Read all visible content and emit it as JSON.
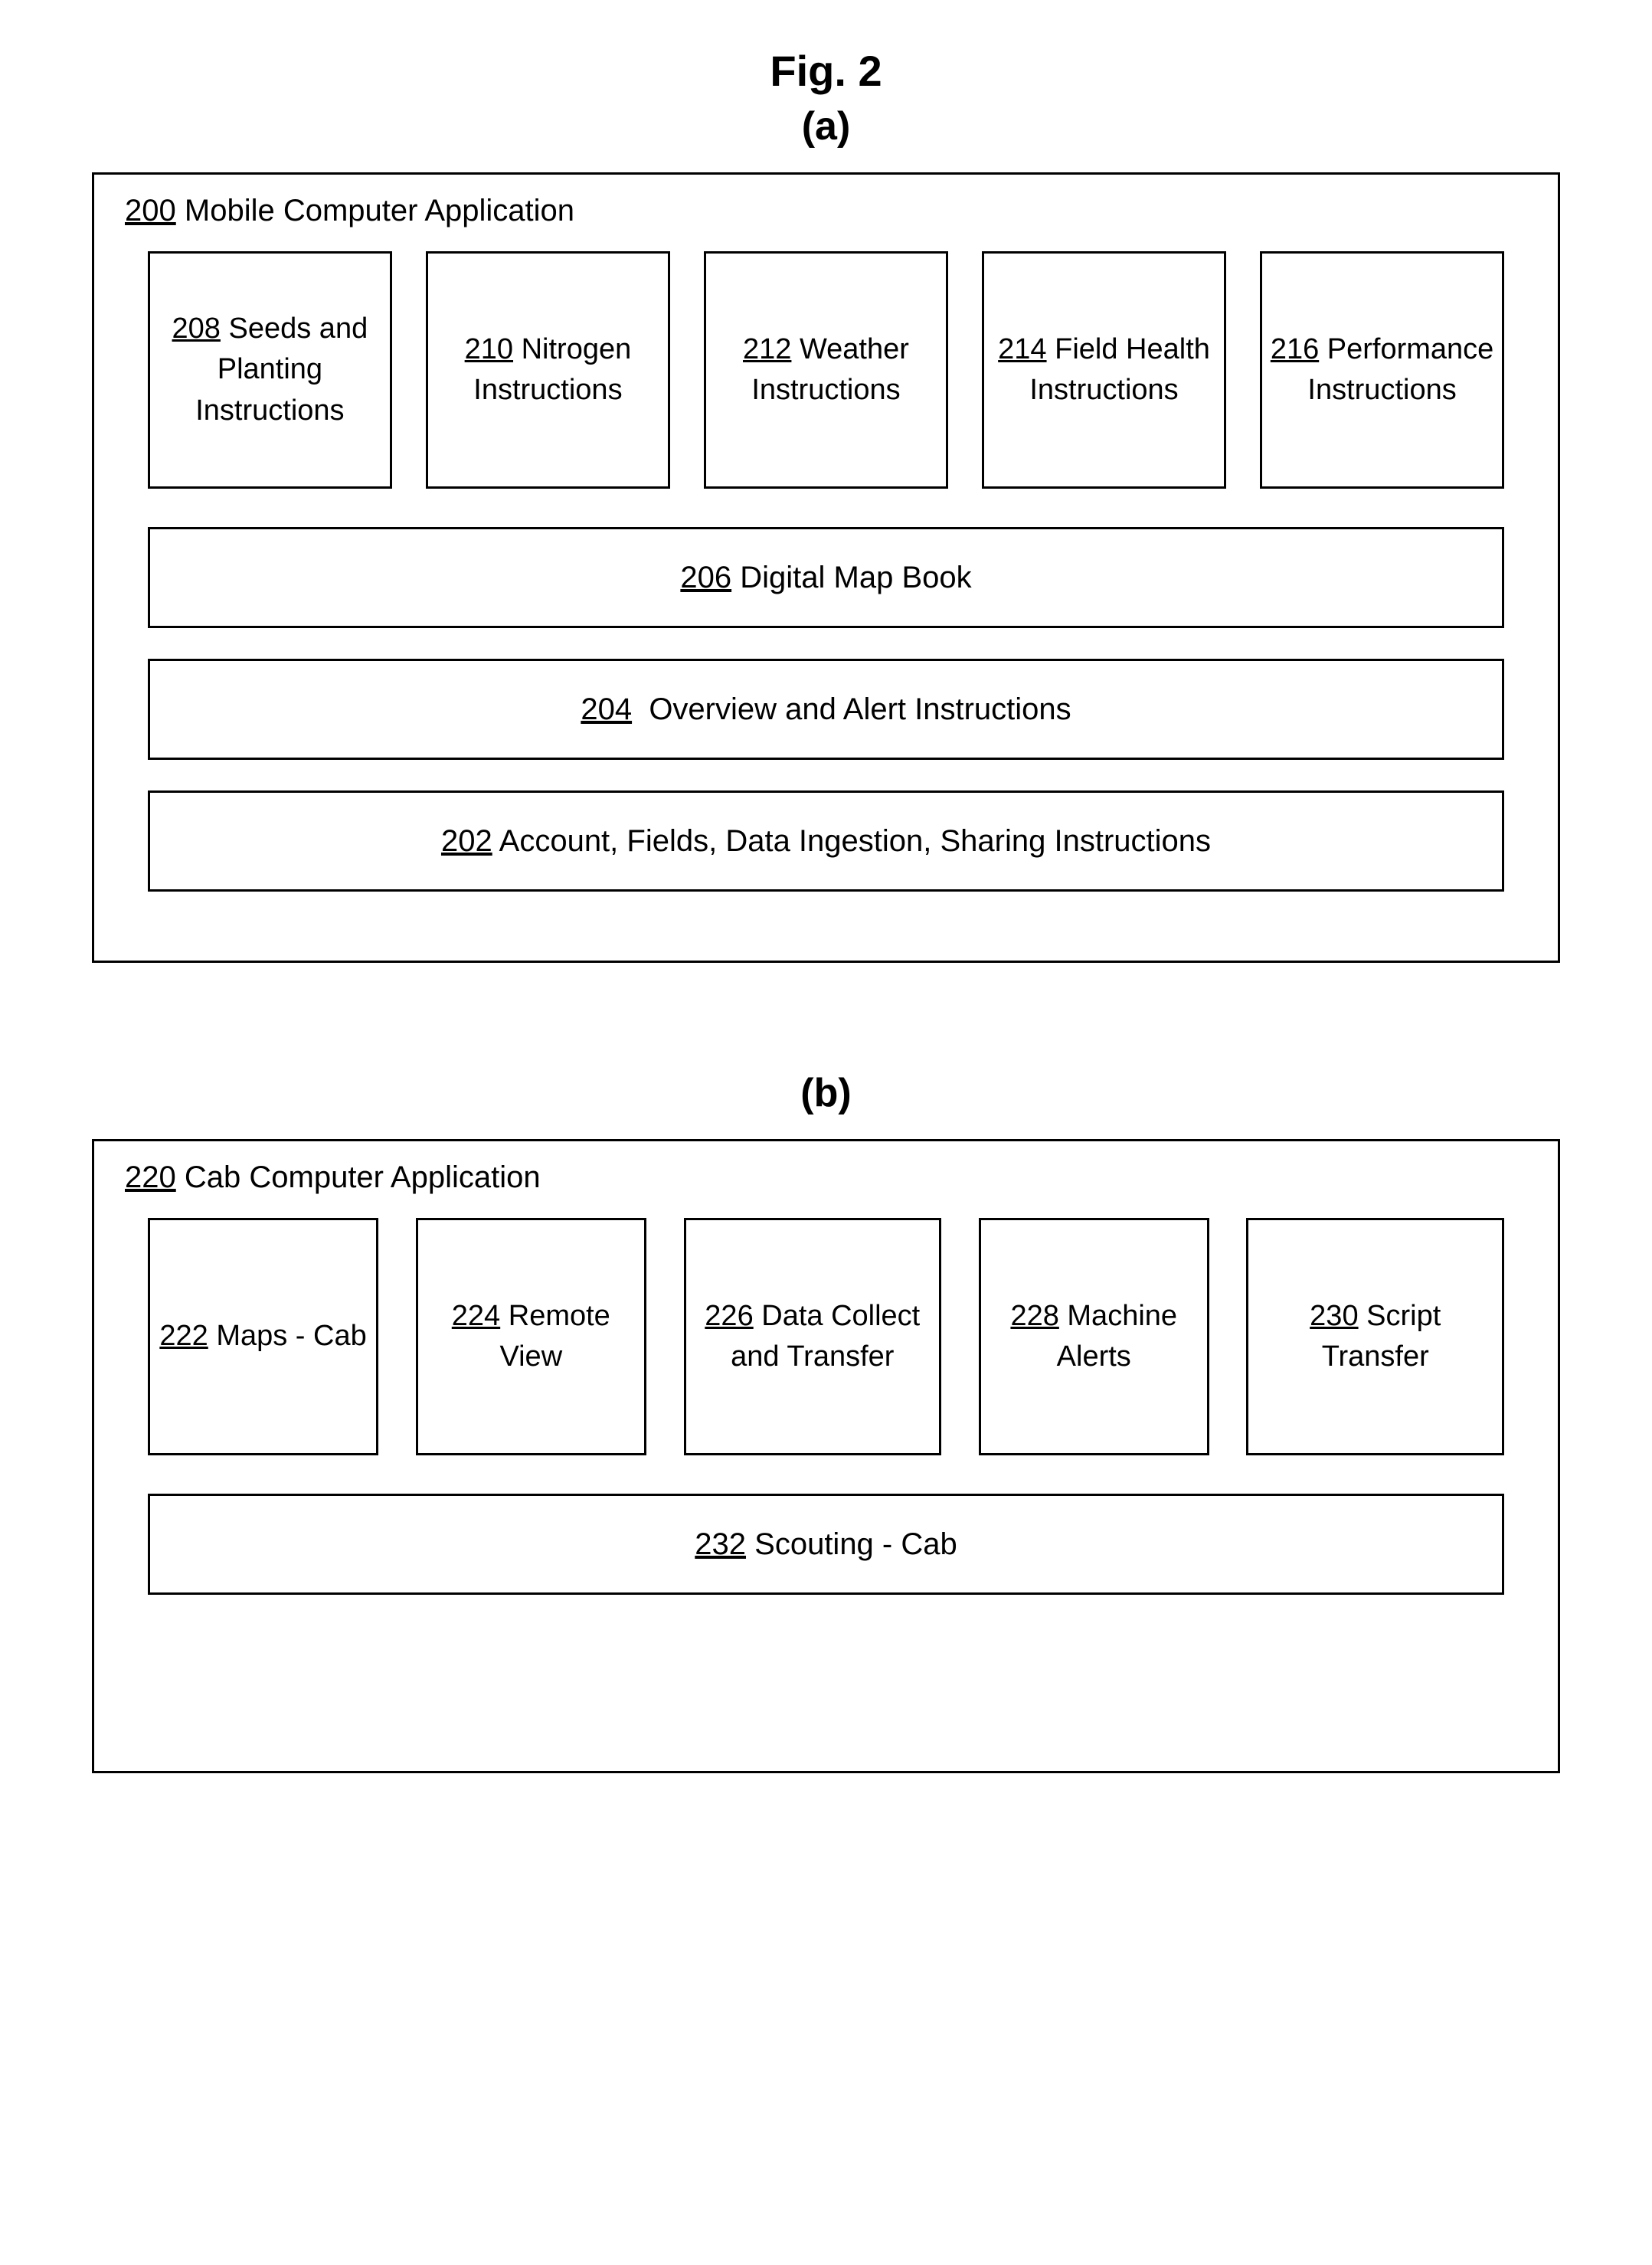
{
  "figure": {
    "title": "Fig. 2",
    "title_fontsize": 56,
    "font_family": "Arial",
    "text_color": "#000000",
    "background_color": "#ffffff",
    "border_color": "#000000",
    "border_width": 3
  },
  "subfigure_a": {
    "label": "(a)",
    "container": {
      "ref": "200",
      "title": "Mobile Computer Application"
    },
    "top_row": [
      {
        "ref": "208",
        "label": "Seeds and Planting Instructions"
      },
      {
        "ref": "210",
        "label": "Nitrogen Instructions"
      },
      {
        "ref": "212",
        "label": "Weather Instructions"
      },
      {
        "ref": "214",
        "label": "Field Health Instructions"
      },
      {
        "ref": "216",
        "label": "Performance Instructions"
      }
    ],
    "wide_rows": [
      {
        "ref": "206",
        "label": "Digital Map Book"
      },
      {
        "ref": "204",
        "label": "Overview and Alert Instructions"
      },
      {
        "ref": "202",
        "label": "Account, Fields, Data Ingestion, Sharing Instructions"
      }
    ]
  },
  "subfigure_b": {
    "label": "(b)",
    "container": {
      "ref": "220",
      "title": "Cab Computer Application"
    },
    "top_row": [
      {
        "ref": "222",
        "label": "Maps - Cab"
      },
      {
        "ref": "224",
        "label": "Remote View"
      },
      {
        "ref": "226",
        "label": "Data Collect and Transfer"
      },
      {
        "ref": "228",
        "label": "Machine Alerts"
      },
      {
        "ref": "230",
        "label": "Script Transfer"
      }
    ],
    "wide_rows": [
      {
        "ref": "232",
        "label": "Scouting - Cab"
      }
    ]
  }
}
